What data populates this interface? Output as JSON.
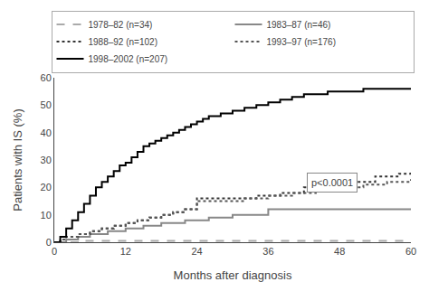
{
  "chart_data": {
    "type": "step",
    "xlabel": "Months after diagnosis",
    "ylabel": "Patients with IS (%)",
    "xlim": [
      0,
      60
    ],
    "ylim": [
      0,
      60
    ],
    "xticks": [
      0,
      12,
      24,
      36,
      48,
      60
    ],
    "yticks": [
      0,
      10,
      20,
      30,
      40,
      50,
      60
    ],
    "grid": false,
    "legend": "top",
    "annotations": [
      "p<0.0001"
    ],
    "series": [
      {
        "name": "1978–82 (n=34)",
        "color": "#aaaaaa",
        "line_style": "dash",
        "x": [
          0,
          3,
          5,
          8,
          60
        ],
        "values": [
          0,
          0,
          0.5,
          0.5,
          0.5
        ]
      },
      {
        "name": "1983–87 (n=46)",
        "color": "#888888",
        "line_style": "solid",
        "x": [
          0,
          2,
          4,
          6,
          9,
          12,
          15,
          18,
          22,
          26,
          30,
          36,
          60
        ],
        "values": [
          0,
          1,
          2,
          3,
          4,
          5,
          6,
          7,
          8,
          9,
          10,
          12,
          12
        ]
      },
      {
        "name": "1988–92 (n=102)",
        "color": "#333333",
        "line_style": "dot",
        "x": [
          0,
          1,
          2,
          4,
          6,
          8,
          10,
          12,
          14,
          16,
          18,
          20,
          22,
          24,
          26,
          30,
          34,
          38,
          42,
          46,
          50,
          54,
          58,
          60
        ],
        "values": [
          0,
          1,
          2,
          3,
          4,
          5,
          6,
          7,
          8,
          9,
          10,
          11,
          12,
          16,
          16,
          16,
          17,
          18,
          20,
          21,
          22,
          24,
          25,
          26
        ]
      },
      {
        "name": "1993–97 (n=176)",
        "color": "#555555",
        "line_style": "dot",
        "x": [
          0,
          1,
          2,
          4,
          6,
          8,
          10,
          12,
          14,
          16,
          18,
          20,
          22,
          24,
          28,
          32,
          36,
          40,
          44,
          48,
          52,
          56,
          60
        ],
        "values": [
          0,
          1,
          2,
          3,
          4,
          5,
          6,
          7,
          8,
          9,
          10,
          11,
          12,
          15,
          15,
          16,
          17,
          18,
          19,
          20,
          21,
          22,
          23
        ]
      },
      {
        "name": "1998–2002 (n=207)",
        "color": "#000000",
        "line_style": "solid",
        "x": [
          0,
          1,
          2,
          3,
          4,
          5,
          6,
          7,
          8,
          9,
          10,
          11,
          12,
          13,
          14,
          15,
          16,
          17,
          18,
          19,
          20,
          21,
          22,
          23,
          24,
          25,
          26,
          28,
          30,
          32,
          34,
          36,
          38,
          40,
          42,
          44,
          46,
          48,
          50,
          52,
          54,
          56,
          58,
          60
        ],
        "values": [
          0,
          2,
          5,
          8,
          11,
          14,
          17,
          20,
          22,
          24,
          26,
          28,
          29,
          31,
          33,
          35,
          36,
          37,
          38,
          39,
          40,
          41,
          42,
          43,
          44,
          45,
          46,
          47,
          48,
          49,
          50,
          51,
          52,
          53,
          54,
          54,
          55,
          55,
          55,
          56,
          56,
          56,
          56,
          56
        ]
      }
    ]
  }
}
